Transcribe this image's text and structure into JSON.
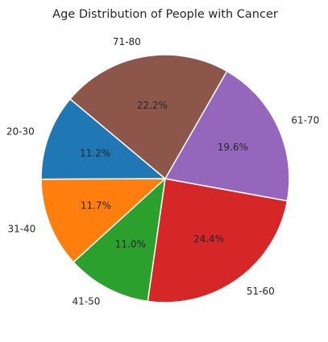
{
  "chart_data": {
    "type": "pie",
    "title": "Age Distribution of People with Cancer",
    "categories": [
      "20-30",
      "31-40",
      "41-50",
      "51-60",
      "61-70",
      "71-80"
    ],
    "values": [
      11.2,
      11.7,
      11.0,
      24.4,
      19.6,
      22.2
    ],
    "percent_labels": [
      "11.2%",
      "11.7%",
      "11.0%",
      "24.4%",
      "19.6%",
      "22.2%"
    ],
    "colors": [
      "#1f77b4",
      "#ff7f0e",
      "#2ca02c",
      "#d62728",
      "#9467bd",
      "#8c564b"
    ],
    "start_angle_deg": 140,
    "direction": "counterclockwise",
    "legend": "none"
  }
}
